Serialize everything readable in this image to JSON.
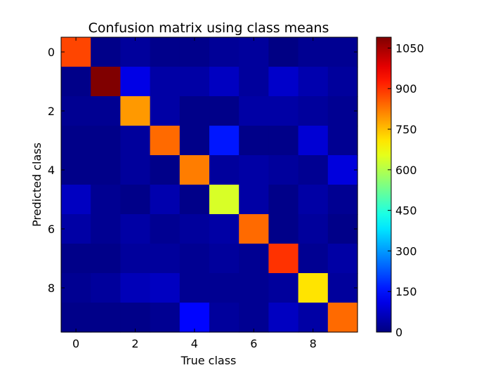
{
  "chart_data": {
    "type": "heatmap",
    "title": "Confusion matrix using class means",
    "xlabel": "True class",
    "ylabel": "Predicted class",
    "x_categories": [
      0,
      1,
      2,
      3,
      4,
      5,
      6,
      7,
      8,
      9
    ],
    "y_categories": [
      0,
      1,
      2,
      3,
      4,
      5,
      6,
      7,
      8,
      9
    ],
    "x_tick_labels": [
      "0",
      "2",
      "4",
      "6",
      "8"
    ],
    "x_tick_values": [
      0,
      2,
      4,
      6,
      8
    ],
    "y_tick_labels": [
      "0",
      "2",
      "4",
      "6",
      "8"
    ],
    "y_tick_values": [
      0,
      2,
      4,
      6,
      8
    ],
    "colormap": "jet",
    "vmin": 0,
    "vmax": 1090,
    "colorbar_ticks": [
      0,
      150,
      300,
      450,
      600,
      750,
      900,
      1050
    ],
    "colorbar_tick_labels": [
      "0",
      "150",
      "300",
      "450",
      "600",
      "750",
      "900",
      "1050"
    ],
    "grid": false,
    "values": [
      [
        880,
        10,
        30,
        12,
        12,
        25,
        30,
        5,
        20,
        20
      ],
      [
        10,
        1090,
        110,
        40,
        40,
        70,
        30,
        80,
        50,
        30
      ],
      [
        20,
        20,
        790,
        40,
        10,
        10,
        40,
        40,
        30,
        20
      ],
      [
        10,
        10,
        30,
        840,
        10,
        160,
        10,
        10,
        90,
        20
      ],
      [
        10,
        10,
        30,
        10,
        820,
        30,
        40,
        30,
        20,
        100
      ],
      [
        70,
        20,
        10,
        50,
        10,
        640,
        40,
        10,
        40,
        20
      ],
      [
        40,
        20,
        40,
        20,
        30,
        40,
        840,
        10,
        30,
        10
      ],
      [
        10,
        10,
        30,
        30,
        20,
        30,
        20,
        900,
        20,
        40
      ],
      [
        20,
        30,
        60,
        70,
        20,
        20,
        20,
        30,
        710,
        30
      ],
      [
        10,
        10,
        10,
        20,
        140,
        30,
        20,
        70,
        40,
        840
      ]
    ]
  }
}
